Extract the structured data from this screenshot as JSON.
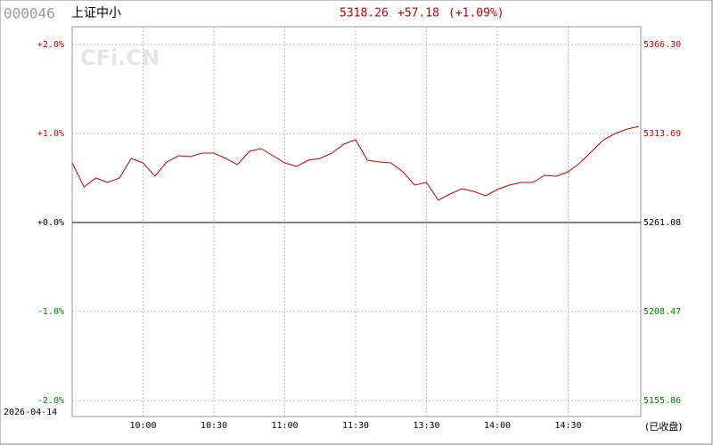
{
  "header": {
    "code": "000046",
    "name": "上证中小",
    "price": "5318.26",
    "change": "+57.18",
    "change_pct": "(+1.09%)",
    "date": "2026-04-14",
    "status": "(已收盘)",
    "watermark": "CFi.CN"
  },
  "chart_data": {
    "type": "line",
    "x": [
      0,
      5,
      10,
      15,
      20,
      25,
      30,
      35,
      40,
      45,
      50,
      55,
      60,
      65,
      70,
      75,
      80,
      85,
      90,
      95,
      100,
      105,
      110,
      115,
      120,
      125,
      130,
      135,
      140,
      145,
      150,
      155,
      160,
      165,
      170,
      175,
      180,
      185,
      190,
      195,
      200,
      205,
      210,
      215,
      220,
      225,
      230,
      235,
      240
    ],
    "xlim": [
      0,
      240
    ],
    "xticks": [
      {
        "value": 30,
        "label": "10:00"
      },
      {
        "value": 60,
        "label": "10:30"
      },
      {
        "value": 90,
        "label": "11:00"
      },
      {
        "value": 120,
        "label": "11:30"
      },
      {
        "value": 150,
        "label": "13:30"
      },
      {
        "value": 180,
        "label": "14:00"
      },
      {
        "value": 210,
        "label": "14:30"
      }
    ],
    "series": [
      {
        "color": "#c00000",
        "values": [
          0.67,
          0.4,
          0.5,
          0.45,
          0.5,
          0.72,
          0.67,
          0.52,
          0.68,
          0.75,
          0.74,
          0.78,
          0.78,
          0.72,
          0.65,
          0.8,
          0.83,
          0.75,
          0.67,
          0.63,
          0.7,
          0.72,
          0.78,
          0.88,
          0.93,
          0.7,
          0.68,
          0.67,
          0.57,
          0.42,
          0.45,
          0.25,
          0.32,
          0.38,
          0.35,
          0.3,
          0.37,
          0.42,
          0.45,
          0.45,
          0.53,
          0.52,
          0.57,
          0.67,
          0.8,
          0.93,
          1.0,
          1.05,
          1.08
        ]
      }
    ],
    "ylim": [
      -2,
      2
    ],
    "yticks": [
      {
        "value": 2,
        "label": "+2.0%"
      },
      {
        "value": 1,
        "label": "+1.0%"
      },
      {
        "value": 0,
        "label": "+0.0%"
      },
      {
        "value": -1,
        "label": "-1.0%"
      },
      {
        "value": -2,
        "label": "-2.0%"
      }
    ],
    "y2lim": [
      5155.86,
      5366.3
    ],
    "y2ticks": [
      {
        "value": 5366.3,
        "label": "5366.30"
      },
      5313.69,
      5261.08,
      5208.47,
      5155.86
    ],
    "grid": true,
    "up_color": "#c00000",
    "down_color": "#008000",
    "flat_color": "#000000"
  }
}
